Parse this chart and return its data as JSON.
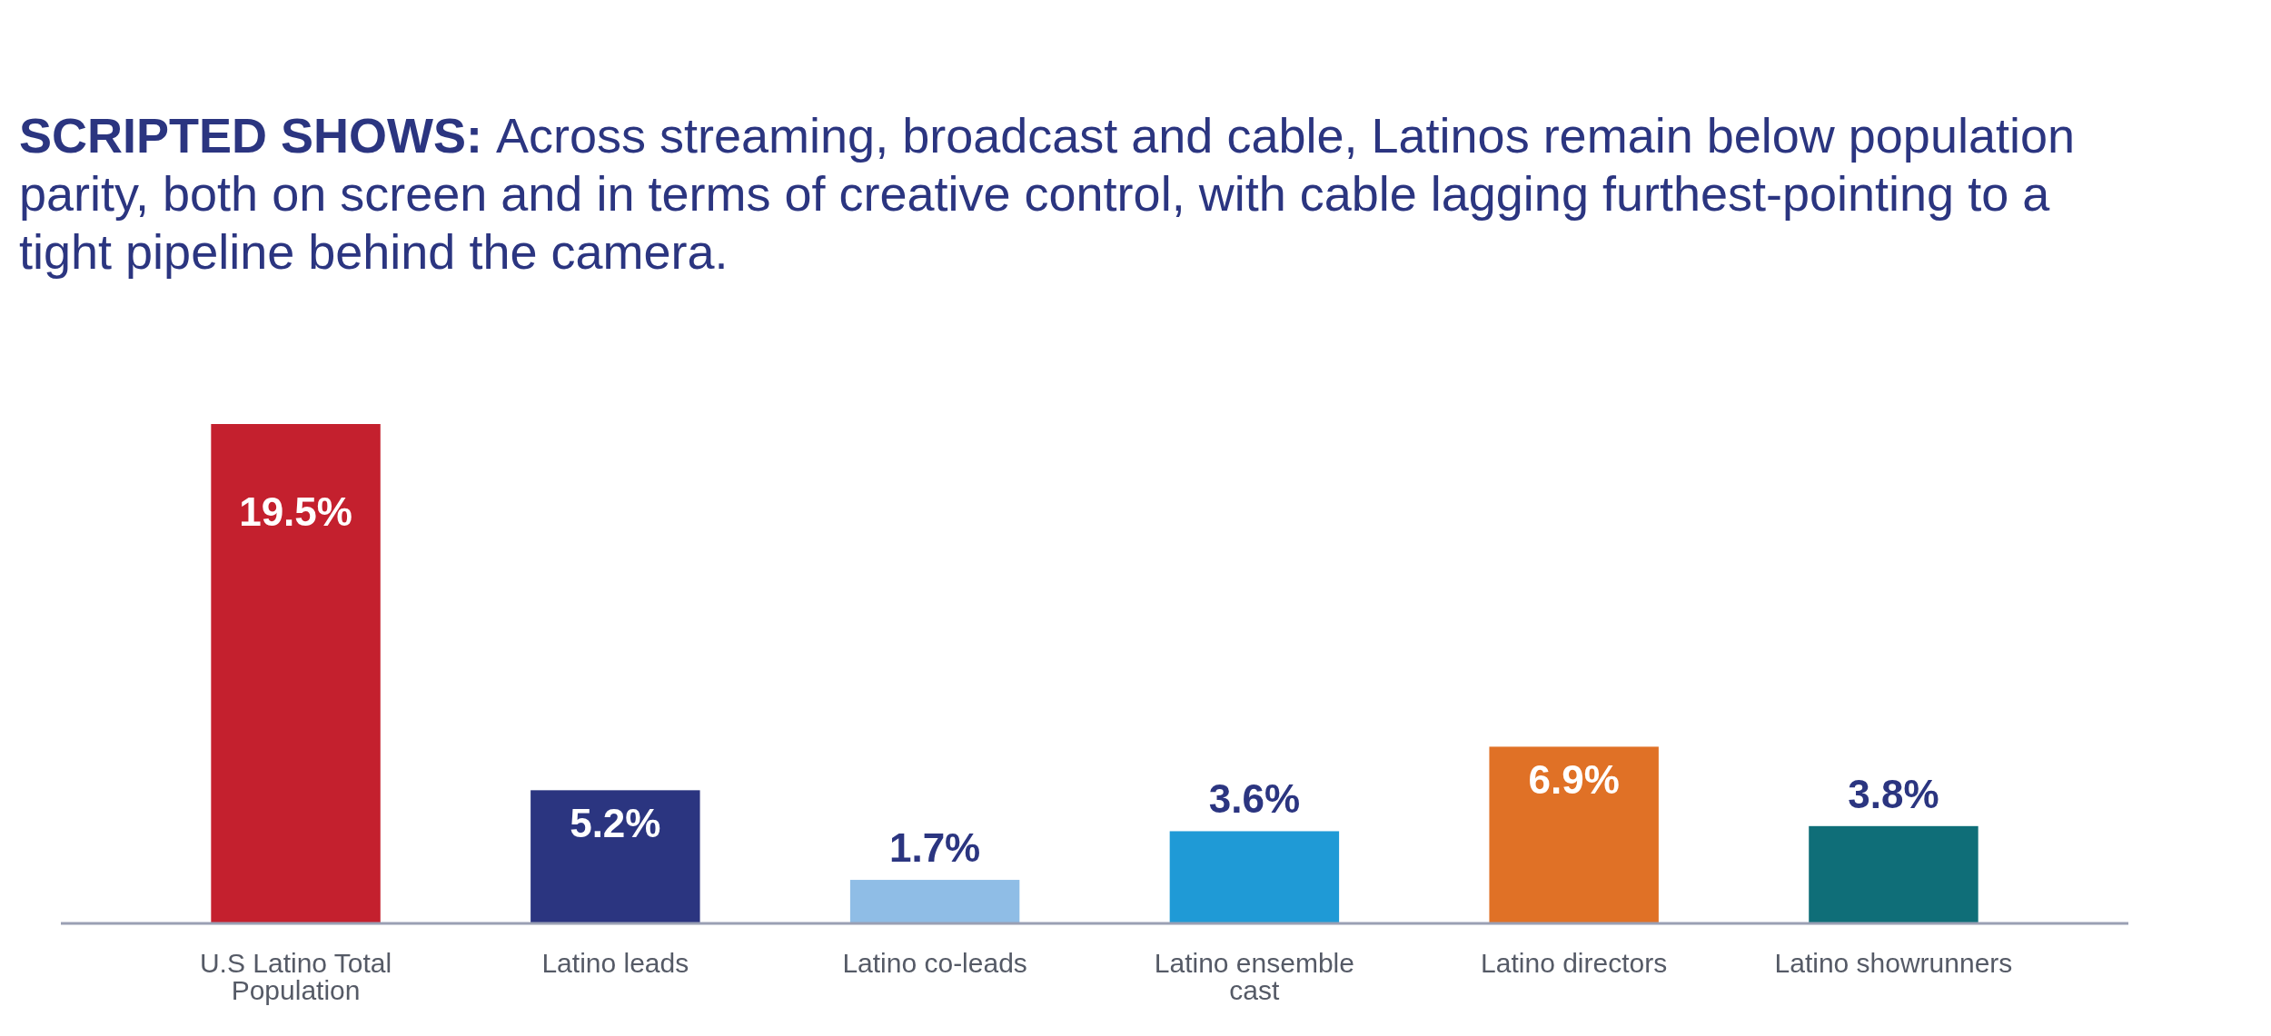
{
  "chart_data": {
    "type": "bar",
    "title": "SCRIPTED SHOWS:",
    "subtitle": "Across streaming, broadcast and cable, Latinos remain below population parity, both on screen and in terms of creative control, with cable lagging furthest-pointing to a tight pipeline behind the camera.",
    "categories": [
      "U.S Latino Total Population",
      "Latino leads",
      "Latino co-leads",
      "Latino ensemble cast",
      "Latino directors",
      "Latino showrunners"
    ],
    "values": [
      19.5,
      5.2,
      1.7,
      3.6,
      6.9,
      3.8
    ],
    "value_labels": [
      "19.5%",
      "5.2%",
      "1.7%",
      "3.6%",
      "6.9%",
      "3.8%"
    ],
    "colors": [
      "#c4202e",
      "#2b3580",
      "#8fbde6",
      "#1f9ad6",
      "#e07126",
      "#0f6e78"
    ],
    "tick_labels": "x"
  }
}
